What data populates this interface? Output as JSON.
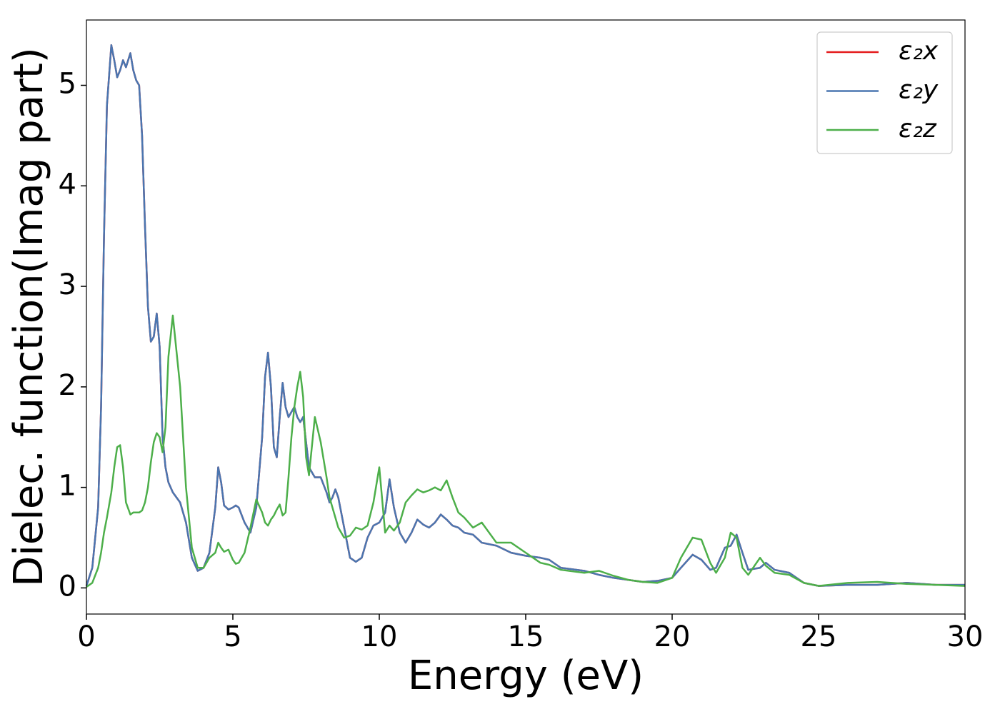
{
  "chart_data": {
    "type": "line",
    "xlabel": "Energy (eV)",
    "ylabel": "Dielec. function(Imag part)",
    "x": [
      0,
      0.2,
      0.4,
      0.5,
      0.6,
      0.7,
      0.85,
      0.95,
      1.05,
      1.15,
      1.25,
      1.35,
      1.5,
      1.6,
      1.7,
      1.8,
      1.9,
      2.0,
      2.1,
      2.2,
      2.3,
      2.4,
      2.5,
      2.6,
      2.7,
      2.8,
      2.95,
      3.2,
      3.4,
      3.6,
      3.8,
      4.0,
      4.2,
      4.4,
      4.5,
      4.6,
      4.7,
      4.85,
      5.0,
      5.1,
      5.2,
      5.4,
      5.6,
      5.8,
      6.0,
      6.1,
      6.2,
      6.3,
      6.4,
      6.5,
      6.6,
      6.7,
      6.8,
      6.9,
      7.0,
      7.1,
      7.2,
      7.3,
      7.4,
      7.5,
      7.6,
      7.8,
      8.0,
      8.2,
      8.3,
      8.4,
      8.5,
      8.6,
      8.8,
      9.0,
      9.2,
      9.4,
      9.6,
      9.8,
      10.0,
      10.2,
      10.35,
      10.5,
      10.7,
      10.9,
      11.1,
      11.3,
      11.5,
      11.7,
      11.9,
      12.1,
      12.3,
      12.5,
      12.7,
      12.9,
      13.2,
      13.5,
      14.0,
      14.5,
      15.0,
      15.5,
      15.8,
      16.2,
      17,
      17.5,
      18,
      18.5,
      19,
      19.5,
      20,
      20.3,
      20.7,
      21.0,
      21.3,
      21.5,
      21.8,
      22.0,
      22.2,
      22.4,
      22.6,
      23,
      23.2,
      23.5,
      24,
      24.5,
      25,
      26,
      27,
      28,
      29,
      30
    ],
    "series": [
      {
        "name": "ε₂x",
        "color": "#e41a1c",
        "values": [
          0.02,
          0.2,
          0.8,
          1.8,
          3.5,
          4.8,
          5.4,
          5.25,
          5.08,
          5.15,
          5.25,
          5.18,
          5.32,
          5.15,
          5.05,
          5.0,
          4.5,
          3.6,
          2.8,
          2.45,
          2.5,
          2.73,
          2.4,
          1.5,
          1.2,
          1.05,
          0.95,
          0.85,
          0.65,
          0.3,
          0.17,
          0.2,
          0.35,
          0.8,
          1.2,
          1.05,
          0.82,
          0.78,
          0.8,
          0.82,
          0.8,
          0.65,
          0.55,
          0.8,
          1.5,
          2.1,
          2.34,
          2.0,
          1.4,
          1.3,
          1.7,
          2.04,
          1.8,
          1.7,
          1.75,
          1.8,
          1.7,
          1.65,
          1.7,
          1.45,
          1.2,
          1.1,
          1.1,
          0.95,
          0.85,
          0.9,
          0.98,
          0.9,
          0.6,
          0.3,
          0.26,
          0.3,
          0.5,
          0.62,
          0.65,
          0.75,
          1.08,
          0.8,
          0.55,
          0.45,
          0.55,
          0.68,
          0.63,
          0.6,
          0.65,
          0.73,
          0.68,
          0.62,
          0.6,
          0.55,
          0.53,
          0.45,
          0.42,
          0.35,
          0.32,
          0.3,
          0.28,
          0.2,
          0.17,
          0.13,
          0.1,
          0.08,
          0.06,
          0.07,
          0.1,
          0.2,
          0.33,
          0.28,
          0.18,
          0.2,
          0.4,
          0.42,
          0.53,
          0.35,
          0.18,
          0.2,
          0.25,
          0.18,
          0.15,
          0.05,
          0.02,
          0.03,
          0.03,
          0.05,
          0.03,
          0.03
        ]
      },
      {
        "name": "ε₂y",
        "color": "#4a76b0",
        "values": [
          0.02,
          0.2,
          0.8,
          1.8,
          3.5,
          4.8,
          5.4,
          5.25,
          5.08,
          5.15,
          5.25,
          5.18,
          5.32,
          5.15,
          5.05,
          5.0,
          4.5,
          3.6,
          2.8,
          2.45,
          2.5,
          2.73,
          2.4,
          1.5,
          1.2,
          1.05,
          0.95,
          0.85,
          0.65,
          0.3,
          0.17,
          0.2,
          0.35,
          0.8,
          1.2,
          1.05,
          0.82,
          0.78,
          0.8,
          0.82,
          0.8,
          0.65,
          0.55,
          0.8,
          1.5,
          2.1,
          2.34,
          2.0,
          1.4,
          1.3,
          1.7,
          2.04,
          1.8,
          1.7,
          1.75,
          1.8,
          1.7,
          1.65,
          1.7,
          1.45,
          1.2,
          1.1,
          1.1,
          0.95,
          0.85,
          0.9,
          0.98,
          0.9,
          0.6,
          0.3,
          0.26,
          0.3,
          0.5,
          0.62,
          0.65,
          0.75,
          1.08,
          0.8,
          0.55,
          0.45,
          0.55,
          0.68,
          0.63,
          0.6,
          0.65,
          0.73,
          0.68,
          0.62,
          0.6,
          0.55,
          0.53,
          0.45,
          0.42,
          0.35,
          0.32,
          0.3,
          0.28,
          0.2,
          0.17,
          0.13,
          0.1,
          0.08,
          0.06,
          0.07,
          0.1,
          0.2,
          0.33,
          0.28,
          0.18,
          0.2,
          0.4,
          0.42,
          0.53,
          0.35,
          0.18,
          0.2,
          0.25,
          0.18,
          0.15,
          0.05,
          0.02,
          0.03,
          0.03,
          0.05,
          0.03,
          0.03
        ]
      },
      {
        "name": "ε₂z",
        "color": "#4daf4a",
        "values": [
          0.01,
          0.05,
          0.2,
          0.35,
          0.55,
          0.7,
          0.95,
          1.2,
          1.4,
          1.42,
          1.2,
          0.85,
          0.73,
          0.75,
          0.75,
          0.75,
          0.77,
          0.85,
          1.0,
          1.25,
          1.45,
          1.54,
          1.5,
          1.35,
          1.6,
          2.3,
          2.71,
          2.0,
          1.0,
          0.4,
          0.2,
          0.2,
          0.3,
          0.35,
          0.45,
          0.4,
          0.36,
          0.38,
          0.28,
          0.24,
          0.25,
          0.35,
          0.6,
          0.88,
          0.75,
          0.65,
          0.62,
          0.68,
          0.72,
          0.78,
          0.83,
          0.72,
          0.75,
          1.1,
          1.5,
          1.8,
          2.0,
          2.15,
          1.9,
          1.3,
          1.12,
          1.7,
          1.45,
          1.1,
          0.9,
          0.8,
          0.7,
          0.6,
          0.5,
          0.52,
          0.6,
          0.58,
          0.62,
          0.85,
          1.2,
          0.55,
          0.62,
          0.57,
          0.65,
          0.85,
          0.92,
          0.98,
          0.95,
          0.97,
          1.0,
          0.97,
          1.07,
          0.9,
          0.75,
          0.7,
          0.6,
          0.65,
          0.45,
          0.45,
          0.35,
          0.25,
          0.23,
          0.18,
          0.15,
          0.17,
          0.12,
          0.08,
          0.06,
          0.05,
          0.1,
          0.3,
          0.5,
          0.48,
          0.25,
          0.15,
          0.3,
          0.55,
          0.5,
          0.2,
          0.13,
          0.3,
          0.22,
          0.15,
          0.13,
          0.05,
          0.02,
          0.05,
          0.06,
          0.04,
          0.03,
          0.02
        ]
      }
    ],
    "xlim": [
      0,
      30
    ],
    "xticks": [
      0,
      5,
      10,
      15,
      20,
      25,
      30
    ],
    "ylim": [
      -0.26,
      5.65
    ],
    "yticks": [
      0,
      1,
      2,
      3,
      4,
      5
    ],
    "grid": false,
    "legend": "upper right"
  }
}
